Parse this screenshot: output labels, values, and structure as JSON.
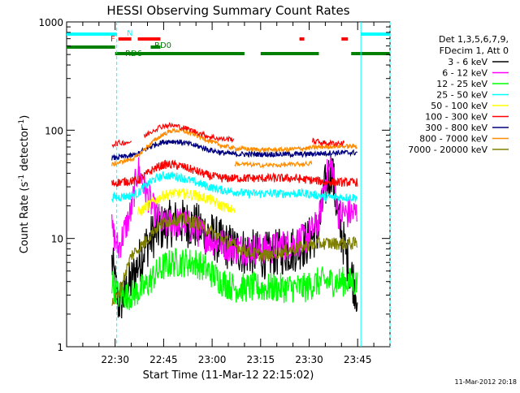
{
  "chart_data": {
    "type": "line",
    "title": "HESSI Observing Summary Count Rates",
    "xlabel": "Start Time (11-Mar-12 22:15:02)",
    "ylabel_main": "Count Rate (s",
    "ylabel_sup1": "-1",
    "ylabel_mid": " detector",
    "ylabel_sup2": "-1",
    "ylabel_end": ")",
    "yscale": "log",
    "ylim": [
      1,
      1000
    ],
    "xlim_minutes": [
      0,
      100
    ],
    "x_tick_minutes": [
      15,
      30,
      45,
      60,
      75,
      90
    ],
    "x_tick_labels": [
      "22:30",
      "22:45",
      "23:00",
      "23:15",
      "23:30",
      "23:45"
    ],
    "y_tick_values": [
      1,
      10,
      100,
      1000
    ],
    "y_tick_labels": [
      "1",
      "10",
      "100",
      "1000"
    ],
    "legend_header": [
      "Det 1,3,5,6,7,9,",
      "FDecim 1, Att 0"
    ],
    "series": [
      {
        "name": "3 - 6 keV",
        "color": "#000000",
        "x": [
          14,
          16,
          18,
          20,
          24,
          27,
          30,
          33,
          36,
          40,
          44,
          48,
          52,
          56,
          60,
          63,
          66,
          70,
          74,
          78,
          80,
          82,
          84,
          87,
          90
        ],
        "y": [
          6,
          2.5,
          3,
          4,
          8,
          11,
          13,
          14,
          14,
          13,
          11,
          9,
          8,
          7.5,
          7,
          7,
          7.5,
          8,
          9,
          12,
          30,
          45,
          15,
          6,
          3
        ]
      },
      {
        "name": "6 - 12 keV",
        "color": "#ff00ff",
        "x": [
          14,
          16,
          20,
          22,
          24,
          27,
          30,
          33,
          36,
          40,
          44,
          48,
          52,
          56,
          60,
          63,
          66,
          70,
          74,
          78,
          80,
          82,
          84,
          87,
          90
        ],
        "y": [
          12,
          8,
          18,
          45,
          30,
          18,
          13,
          14,
          14,
          12,
          10,
          9,
          8,
          8,
          8,
          8,
          8.5,
          9,
          10,
          14,
          35,
          50,
          17,
          17,
          17
        ]
      },
      {
        "name": "12 - 25 keV",
        "color": "#00ff00",
        "x": [
          14,
          16,
          20,
          24,
          27,
          30,
          33,
          36,
          40,
          44,
          48,
          52,
          56,
          60,
          63,
          66,
          70,
          74,
          78,
          80,
          82,
          84,
          87,
          90
        ],
        "y": [
          4,
          3,
          3,
          3.5,
          4.5,
          5.5,
          6,
          6,
          6,
          5,
          4,
          3.5,
          3.5,
          3.5,
          3.5,
          3.5,
          3.5,
          3.5,
          4,
          4,
          4,
          4,
          4,
          3.8
        ]
      },
      {
        "name": "25 - 50 keV",
        "color": "#00ffff",
        "x": [
          14,
          16,
          20,
          22,
          24,
          27,
          30,
          33,
          36,
          40,
          44,
          48,
          52,
          56,
          60,
          63,
          66,
          70,
          74,
          78,
          80,
          82,
          84,
          87,
          90
        ],
        "y": [
          24,
          24,
          25,
          26,
          30,
          35,
          38,
          38,
          36,
          33,
          30,
          28,
          27,
          26,
          26,
          26,
          26,
          26,
          26,
          25,
          24,
          24,
          24,
          24,
          24
        ]
      },
      {
        "name": "50 - 100 keV",
        "color": "#ffff00",
        "x": [
          22,
          24,
          27,
          30,
          33,
          36,
          40,
          44,
          48,
          52
        ],
        "y": [
          17,
          19,
          22,
          25,
          26,
          26,
          25,
          23,
          20,
          18
        ]
      },
      {
        "name": "100 - 300 keV",
        "color": "#ff0000",
        "x": [
          14,
          16,
          20,
          22,
          24,
          27,
          30,
          33,
          36,
          40,
          44,
          48,
          52,
          56,
          60,
          63,
          66,
          70,
          74,
          78,
          80,
          82,
          84,
          87,
          90
        ],
        "y": [
          32,
          33,
          34,
          34,
          38,
          44,
          48,
          48,
          46,
          42,
          38,
          36,
          36,
          36,
          36,
          36,
          36,
          36,
          35,
          34,
          33,
          33,
          33,
          33,
          33
        ]
      },
      {
        "name": "300 - 800 keV",
        "color": "#000080",
        "x": [
          14,
          16,
          20,
          22,
          24,
          27,
          30,
          33,
          36,
          40,
          44,
          48,
          52,
          56,
          60,
          63,
          66,
          70,
          74,
          78,
          80,
          82,
          84,
          87,
          90
        ],
        "y": [
          55,
          56,
          58,
          60,
          66,
          73,
          78,
          79,
          77,
          72,
          66,
          62,
          60,
          60,
          60,
          60,
          60,
          60,
          60,
          61,
          61,
          62,
          62,
          62,
          62
        ]
      },
      {
        "name": "800 - 7000 keV",
        "color": "#ff8c00",
        "x": [
          14,
          16,
          20,
          22,
          24,
          27,
          30,
          33,
          36,
          40,
          44,
          48,
          52,
          56,
          60,
          63,
          66,
          70,
          74,
          78,
          80,
          82,
          84,
          87,
          90
        ],
        "y": [
          48,
          50,
          54,
          58,
          66,
          80,
          92,
          100,
          98,
          90,
          80,
          72,
          68,
          67,
          66,
          66,
          66,
          67,
          68,
          70,
          70,
          71,
          71,
          71,
          71
        ]
      },
      {
        "name": "7000 - 20000 keV",
        "color": "#808000",
        "x": [
          14,
          16,
          20,
          24,
          27,
          30,
          33,
          36,
          40,
          44,
          48,
          52,
          56,
          60,
          63,
          66,
          70,
          74,
          78,
          80,
          82,
          84,
          87,
          90
        ],
        "y": [
          2.5,
          3,
          7,
          9,
          12,
          14,
          15,
          15,
          14,
          12,
          10,
          8.5,
          7.5,
          7,
          7,
          7.5,
          8,
          8.5,
          9,
          9,
          9,
          9,
          9,
          9
        ]
      }
    ],
    "red_high_segments": [
      [
        14,
        20
      ],
      [
        24,
        52
      ],
      [
        76,
        86
      ]
    ],
    "red_low_segments": [
      [
        52,
        76
      ]
    ],
    "orange_low_segments": [
      [
        52,
        76
      ]
    ],
    "vertical_markers": [
      {
        "x": 15.5,
        "color": "#00ffff",
        "style": "dashed"
      },
      {
        "x": 91,
        "color": "#00ffff",
        "style": "solid"
      },
      {
        "x": 100,
        "color": "#00ffff",
        "style": "dashed"
      }
    ],
    "flag_bars": [
      {
        "label": "N",
        "color": "#00ffff",
        "segments": [
          [
            0,
            15.5
          ],
          [
            91,
            100
          ]
        ]
      },
      {
        "label": "F",
        "color": "#ff0000",
        "segments": [
          [
            16,
            20
          ],
          [
            22,
            29
          ],
          [
            72,
            73.5
          ],
          [
            85,
            87
          ]
        ]
      },
      {
        "label": "RD0",
        "color": "#008000",
        "segments": [
          [
            0,
            15
          ],
          [
            26,
            29
          ]
        ]
      },
      {
        "label": "RD6",
        "color": "#008000",
        "segments": [
          [
            15,
            55
          ],
          [
            60,
            78
          ],
          [
            88,
            100
          ]
        ]
      }
    ],
    "timestamp": "11-Mar-2012 20:18"
  }
}
